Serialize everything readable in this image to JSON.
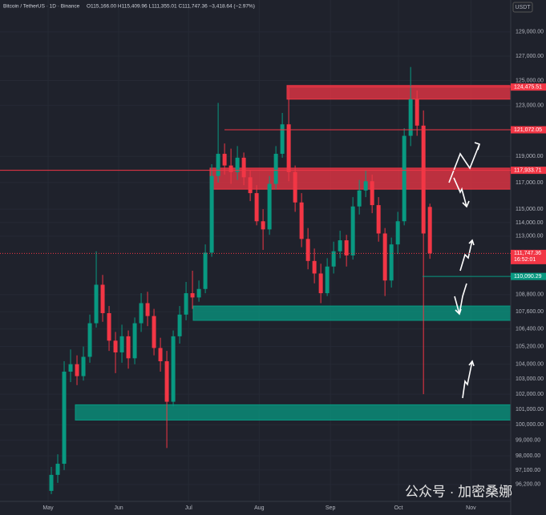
{
  "chart_data": {
    "type": "candlestick",
    "title": "Bitcoin / TetherUS · 1D · Binance",
    "subtitle": "O115,166.00 H115,409.96 L111,355.01 C111,747.36 −3,418.64 (−2.97%)",
    "currency": "USDT",
    "log_scale": true,
    "grid": true,
    "up_color": "#089981",
    "down_color": "#f23645",
    "ylim": [
      95150,
      131700
    ],
    "yticks": [
      {
        "value": 129000,
        "label": "129,000.00"
      },
      {
        "value": 127000,
        "label": "127,000.00"
      },
      {
        "value": 125000,
        "label": "125,000.00"
      },
      {
        "value": 123000,
        "label": "123,000.00"
      },
      {
        "value": 119000,
        "label": "119,000.00"
      },
      {
        "value": 117000,
        "label": "117,000.00"
      },
      {
        "value": 115000,
        "label": "115,000.00"
      },
      {
        "value": 114000,
        "label": "114,000.00"
      },
      {
        "value": 113000,
        "label": "113,000.00"
      },
      {
        "value": 108800,
        "label": "108,800.00"
      },
      {
        "value": 107600,
        "label": "107,600.00"
      },
      {
        "value": 106400,
        "label": "106,400.00"
      },
      {
        "value": 105200,
        "label": "105,200.00"
      },
      {
        "value": 104000,
        "label": "104,000.00"
      },
      {
        "value": 103000,
        "label": "103,000.00"
      },
      {
        "value": 102000,
        "label": "102,000.00"
      },
      {
        "value": 101000,
        "label": "101,000.00"
      },
      {
        "value": 100000,
        "label": "100,000.00"
      },
      {
        "value": 99000,
        "label": "99,000.00"
      },
      {
        "value": 98000,
        "label": "98,000.00"
      },
      {
        "value": 97100,
        "label": "97,100.00"
      },
      {
        "value": 96200,
        "label": "96,200.00"
      }
    ],
    "xlim": [
      -8,
      71.6
    ],
    "xticks": [
      {
        "value": -0.5,
        "label": "May"
      },
      {
        "value": 10.5,
        "label": "Jun"
      },
      {
        "value": 21.4,
        "label": "Jul"
      },
      {
        "value": 32.4,
        "label": "Aug"
      },
      {
        "value": 43.5,
        "label": "Sep"
      },
      {
        "value": 54.1,
        "label": "Oct"
      },
      {
        "value": 65.4,
        "label": "Nov"
      }
    ],
    "open": [
      95800,
      96800,
      97500,
      103500,
      104000,
      103200,
      104500,
      106800,
      109500,
      107500,
      105600,
      104800,
      105900,
      104400,
      106800,
      108200,
      107300,
      105100,
      104200,
      101500,
      105900,
      107400,
      108900,
      108600,
      109200,
      111800,
      117500,
      119200,
      118300,
      117800,
      118900,
      117400,
      116200,
      114100,
      113500,
      116900,
      119200,
      121500,
      117800,
      115500,
      112800,
      111200,
      110300,
      108900,
      110800,
      111900,
      112700,
      111600,
      115200,
      116400,
      117100,
      115300,
      113200,
      109800,
      112400,
      114100,
      120600,
      123500,
      121400,
      115166
    ],
    "high": [
      97300,
      98100,
      104200,
      105000,
      104600,
      105200,
      107400,
      111900,
      110200,
      108000,
      106200,
      106700,
      106300,
      107200,
      108900,
      109000,
      107800,
      105800,
      104900,
      106300,
      108000,
      109700,
      110500,
      109800,
      112400,
      118400,
      123200,
      120000,
      119600,
      119800,
      119300,
      117900,
      116800,
      115000,
      117500,
      119800,
      122400,
      124400,
      118300,
      116200,
      113600,
      112100,
      111000,
      111400,
      112600,
      113400,
      113100,
      115900,
      117200,
      117900,
      117600,
      115900,
      113600,
      112900,
      114800,
      121200,
      126100,
      124200,
      122600,
      115410
    ],
    "low": [
      95600,
      96300,
      97100,
      102800,
      102600,
      102900,
      104100,
      106500,
      106900,
      104900,
      103400,
      104100,
      103700,
      104000,
      106200,
      106600,
      104600,
      103500,
      98500,
      101200,
      105400,
      107000,
      107800,
      108300,
      108900,
      111500,
      117000,
      117600,
      116900,
      117200,
      116800,
      115600,
      113800,
      112000,
      113100,
      116500,
      118900,
      117100,
      114800,
      112200,
      110600,
      109600,
      108200,
      108700,
      110300,
      111400,
      110800,
      111300,
      114600,
      115900,
      114700,
      112600,
      108700,
      109300,
      111700,
      113800,
      119800,
      120600,
      102000,
      111355
    ],
    "close": [
      96800,
      97500,
      103500,
      104000,
      103200,
      104500,
      106800,
      109500,
      107500,
      105600,
      104800,
      105900,
      104400,
      106800,
      108200,
      107300,
      105100,
      104200,
      101500,
      105900,
      107400,
      108900,
      108600,
      109200,
      111800,
      117500,
      119200,
      118300,
      117800,
      118900,
      117400,
      116200,
      114100,
      113500,
      116900,
      119200,
      121500,
      117800,
      115500,
      112800,
      111200,
      110300,
      108900,
      110800,
      111900,
      112700,
      111600,
      115200,
      116400,
      117100,
      115300,
      113200,
      109800,
      112400,
      114100,
      120600,
      123500,
      121400,
      113200,
      111747.36
    ],
    "price_lines": [
      {
        "value": 124475.51,
        "label": "124,475.51",
        "color": "#f23645"
      },
      {
        "value": 121072.05,
        "label": "121,072.05",
        "color": "#f23645"
      },
      {
        "value": 117933.71,
        "label": "117,933.71",
        "color": "#f23645"
      },
      {
        "value": 111747.36,
        "label": "111,747.36",
        "color": "#f23645",
        "countdown": "16:52:01"
      },
      {
        "value": 110090.29,
        "label": "110,090.29",
        "color": "#089981"
      }
    ],
    "zones": [
      {
        "low": 123500,
        "high": 124600,
        "color": "#f23645"
      },
      {
        "low": 116500,
        "high": 118100,
        "color": "#f23645"
      },
      {
        "low": 107000,
        "high": 108000,
        "color": "#089981"
      },
      {
        "low": 100300,
        "high": 101300,
        "color": "#089981"
      }
    ],
    "watermark": "公众号 · 加密桑娜"
  }
}
